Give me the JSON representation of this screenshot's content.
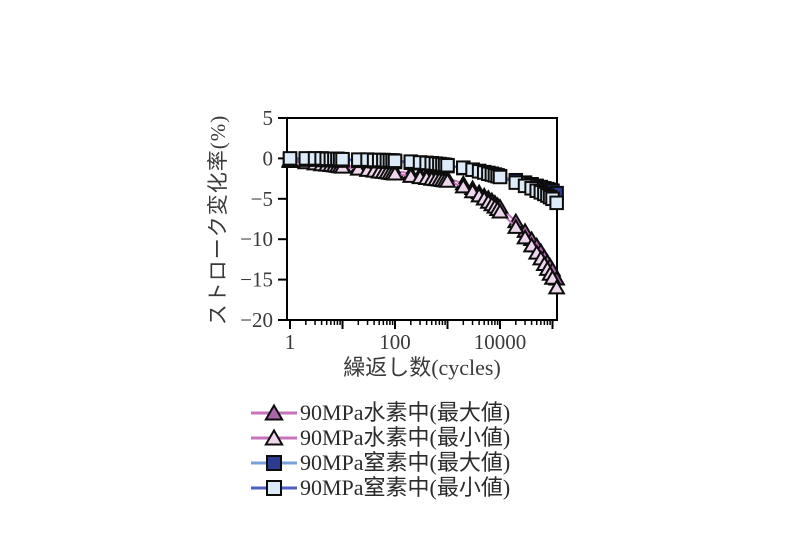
{
  "page": {
    "background": "#ffffff",
    "text_color": "#3a3a3a"
  },
  "chart_data": {
    "type": "scatter",
    "title": "",
    "xlabel": "繰返し数(cycles)",
    "ylabel": "ストローク変化率(%)",
    "x_scale": "log",
    "xlim": [
      1,
      120000
    ],
    "ylim": [
      -20,
      5
    ],
    "grid": false,
    "legend_position": "below",
    "yticks": [
      5,
      0,
      -5,
      -10,
      -15,
      -20
    ],
    "xtick_labels": {
      "0": "1",
      "2": "100",
      "4": "10000"
    },
    "axis_color": "#000000",
    "x": [
      1,
      2,
      3,
      4,
      5,
      6,
      7,
      8,
      9,
      10,
      20,
      30,
      40,
      50,
      60,
      70,
      80,
      90,
      100,
      200,
      300,
      400,
      500,
      600,
      700,
      800,
      900,
      1000,
      2000,
      3000,
      4000,
      5000,
      6000,
      7000,
      8000,
      9000,
      10000,
      20000,
      30000,
      40000,
      50000,
      60000,
      70000,
      80000,
      90000,
      100000,
      120000
    ],
    "series": [
      {
        "name": "90MPa水素中(最大値)",
        "marker": "triangle",
        "fill": "#a966a9",
        "line": "#c673bb",
        "edge": "#0d0d0d",
        "values": [
          -0.2,
          -0.35,
          -0.45,
          -0.55,
          -0.6,
          -0.65,
          -0.7,
          -0.75,
          -0.8,
          -0.85,
          -1.05,
          -1.2,
          -1.3,
          -1.35,
          -1.4,
          -1.45,
          -1.5,
          -1.55,
          -1.6,
          -1.85,
          -2.0,
          -2.1,
          -2.2,
          -2.25,
          -2.3,
          -2.35,
          -2.4,
          -2.45,
          -3.1,
          -3.7,
          -4.2,
          -4.6,
          -4.9,
          -5.2,
          -5.5,
          -5.8,
          -6.0,
          -7.8,
          -9.0,
          -10.0,
          -10.8,
          -11.5,
          -12.2,
          -12.8,
          -13.3,
          -13.8,
          -14.9
        ]
      },
      {
        "name": "90MPa水素中(最小値)",
        "marker": "triangle",
        "fill": "#eed7ed",
        "line": "#c673bb",
        "edge": "#0d0d0d",
        "values": [
          -0.35,
          -0.5,
          -0.65,
          -0.75,
          -0.8,
          -0.85,
          -0.9,
          -0.95,
          -1.0,
          -1.05,
          -1.3,
          -1.45,
          -1.55,
          -1.65,
          -1.7,
          -1.75,
          -1.8,
          -1.85,
          -1.9,
          -2.2,
          -2.35,
          -2.45,
          -2.55,
          -2.6,
          -2.65,
          -2.7,
          -2.75,
          -2.8,
          -3.5,
          -4.1,
          -4.6,
          -5.0,
          -5.4,
          -5.7,
          -6.0,
          -6.3,
          -6.6,
          -8.5,
          -9.8,
          -10.8,
          -11.7,
          -12.4,
          -13.1,
          -13.7,
          -14.3,
          -14.8,
          -16.0
        ]
      },
      {
        "name": "90MPa窒素中(最大値)",
        "marker": "square",
        "fill": "#2b3c91",
        "line": "#7aa0d8",
        "edge": "#0d0d0d",
        "values": [
          -0.15,
          -0.15,
          -0.15,
          -0.2,
          -0.2,
          -0.2,
          -0.2,
          -0.25,
          -0.25,
          -0.25,
          -0.3,
          -0.3,
          -0.35,
          -0.35,
          -0.4,
          -0.4,
          -0.4,
          -0.45,
          -0.45,
          -0.55,
          -0.6,
          -0.65,
          -0.7,
          -0.75,
          -0.8,
          -0.85,
          -0.9,
          -0.95,
          -1.2,
          -1.4,
          -1.55,
          -1.7,
          -1.8,
          -1.9,
          -2.0,
          -2.1,
          -2.2,
          -2.7,
          -3.0,
          -3.2,
          -3.4,
          -3.55,
          -3.7,
          -3.8,
          -3.9,
          -4.0,
          -4.3
        ]
      },
      {
        "name": "90MPa窒素中(最小値)",
        "marker": "square",
        "fill": "#dcebf7",
        "line": "#4d60c0",
        "edge": "#0d0d0d",
        "values": [
          0,
          0,
          0,
          0,
          -0.05,
          -0.05,
          -0.05,
          -0.05,
          -0.1,
          -0.1,
          -0.15,
          -0.15,
          -0.2,
          -0.2,
          -0.2,
          -0.25,
          -0.25,
          -0.25,
          -0.3,
          -0.4,
          -0.5,
          -0.55,
          -0.6,
          -0.65,
          -0.7,
          -0.75,
          -0.8,
          -0.85,
          -1.15,
          -1.4,
          -1.6,
          -1.75,
          -1.9,
          -2.0,
          -2.1,
          -2.2,
          -2.3,
          -3.0,
          -3.4,
          -3.7,
          -4.0,
          -4.2,
          -4.4,
          -4.6,
          -4.8,
          -5.0,
          -5.5
        ]
      }
    ]
  }
}
